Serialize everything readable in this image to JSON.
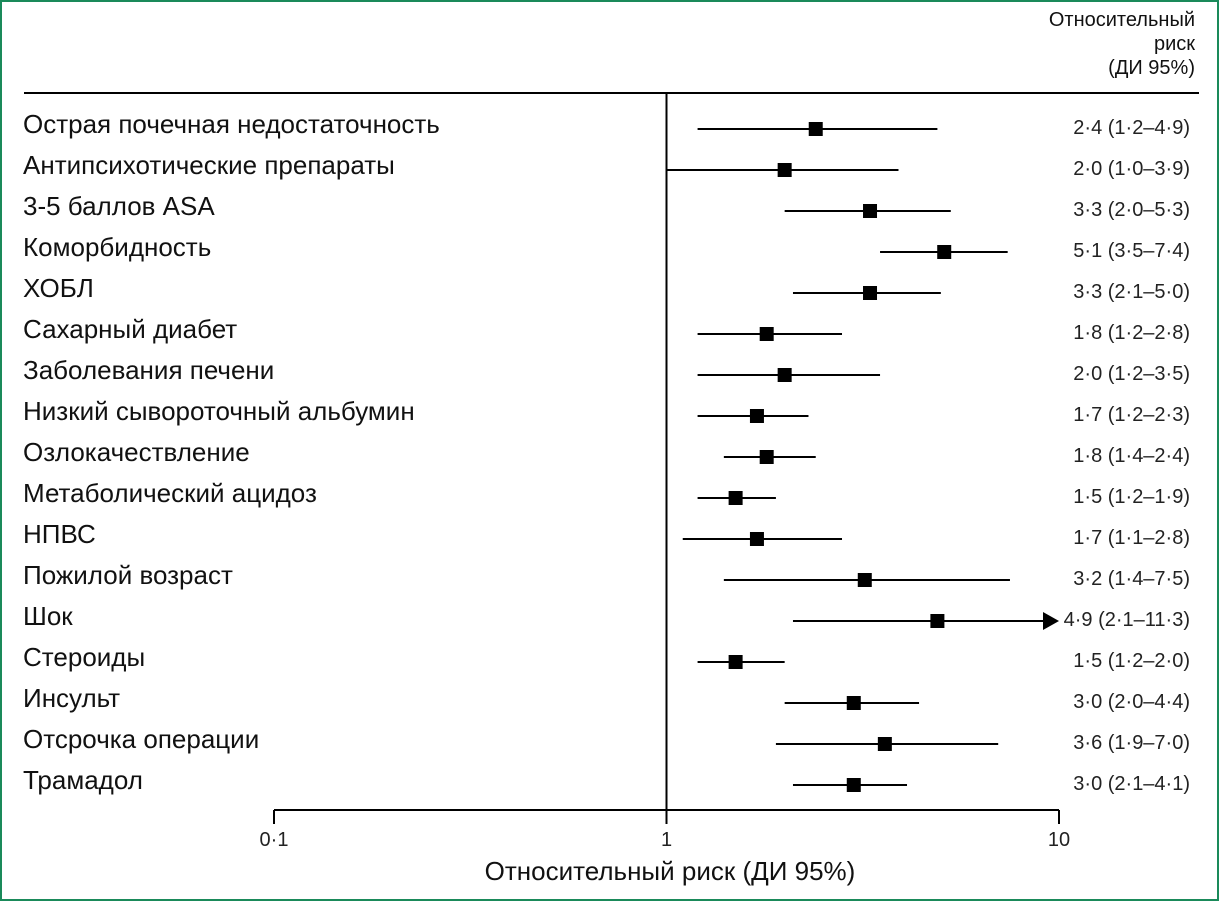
{
  "chart_data": {
    "type": "forest",
    "column_header": [
      "Относительный",
      "риск",
      "(ДИ 95%)"
    ],
    "xlabel": "Относительный риск (ДИ 95%)",
    "x_scale": "log",
    "xlim": [
      0.1,
      10
    ],
    "reference_line": 1,
    "ticks": [
      {
        "value": 0.1,
        "label": "0·1"
      },
      {
        "value": 1,
        "label": "1"
      },
      {
        "value": 10,
        "label": "10"
      }
    ],
    "rows": [
      {
        "label": "Острая почечная недостаточность",
        "rr": 2.4,
        "low": 1.2,
        "high": 4.9,
        "text": "2·4 (1·2–4·9)"
      },
      {
        "label": "Антипсихотические препараты",
        "rr": 2.0,
        "low": 1.0,
        "high": 3.9,
        "text": "2·0 (1·0–3·9)"
      },
      {
        "label": "3-5 баллов ASA",
        "rr": 3.3,
        "low": 2.0,
        "high": 5.3,
        "text": "3·3 (2·0–5·3)"
      },
      {
        "label": "Коморбидность",
        "rr": 5.1,
        "low": 3.5,
        "high": 7.4,
        "text": "5·1 (3·5–7·4)"
      },
      {
        "label": "ХОБЛ",
        "rr": 3.3,
        "low": 2.1,
        "high": 5.0,
        "text": "3·3 (2·1–5·0)"
      },
      {
        "label": "Сахарный диабет",
        "rr": 1.8,
        "low": 1.2,
        "high": 2.8,
        "text": "1·8 (1·2–2·8)"
      },
      {
        "label": "Заболевания печени",
        "rr": 2.0,
        "low": 1.2,
        "high": 3.5,
        "text": "2·0 (1·2–3·5)"
      },
      {
        "label": "Низкий сывороточный альбумин",
        "rr": 1.7,
        "low": 1.2,
        "high": 2.3,
        "text": "1·7 (1·2–2·3)"
      },
      {
        "label": "Озлокачествление",
        "rr": 1.8,
        "low": 1.4,
        "high": 2.4,
        "text": "1·8 (1·4–2·4)"
      },
      {
        "label": "Метаболический ацидоз",
        "rr": 1.5,
        "low": 1.2,
        "high": 1.9,
        "text": "1·5 (1·2–1·9)"
      },
      {
        "label": "НПВС",
        "rr": 1.7,
        "low": 1.1,
        "high": 2.8,
        "text": "1·7 (1·1–2·8)"
      },
      {
        "label": "Пожилой возраст",
        "rr": 3.2,
        "low": 1.4,
        "high": 7.5,
        "text": "3·2 (1·4–7·5)"
      },
      {
        "label": "Шок",
        "rr": 4.9,
        "low": 2.1,
        "high": 11.3,
        "text": "4·9 (2·1–11·3)"
      },
      {
        "label": "Стероиды",
        "rr": 1.5,
        "low": 1.2,
        "high": 2.0,
        "text": "1·5 (1·2–2·0)"
      },
      {
        "label": "Инсульт",
        "rr": 3.0,
        "low": 2.0,
        "high": 4.4,
        "text": "3·0 (2·0–4·4)"
      },
      {
        "label": "Отсрочка операции",
        "rr": 3.6,
        "low": 1.9,
        "high": 7.0,
        "text": "3·6 (1·9–7·0)"
      },
      {
        "label": "Трамадол",
        "rr": 3.0,
        "low": 2.1,
        "high": 4.1,
        "text": "3·0 (2·1–4·1)"
      }
    ]
  }
}
